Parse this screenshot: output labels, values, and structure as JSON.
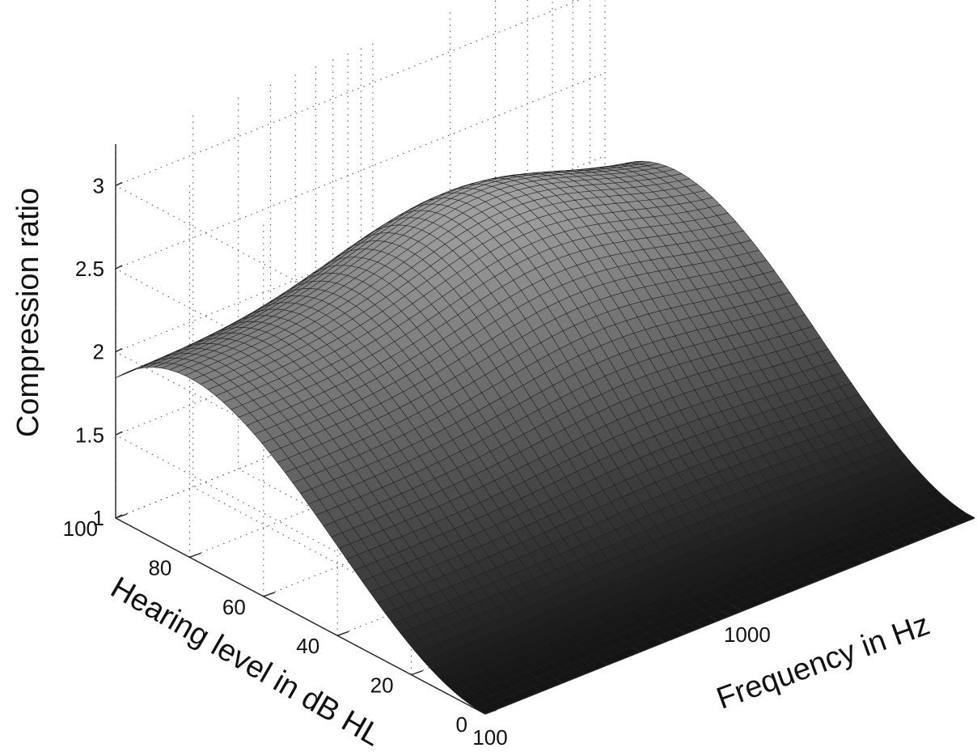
{
  "chart_data": {
    "type": "surface",
    "title": "",
    "xlabel": "Frequency in Hz",
    "ylabel": "Hearing level in dB HL",
    "zlabel": "Compression ratio",
    "x_scale": "log",
    "x_ticks": [
      100,
      1000
    ],
    "x_minor_ticks": [
      200,
      300,
      400,
      500,
      600,
      700,
      800,
      900,
      2000,
      3000,
      4000,
      5000,
      6000,
      7000,
      8000
    ],
    "xlim": [
      100,
      8000
    ],
    "y_ticks": [
      0,
      20,
      40,
      60,
      80,
      100
    ],
    "ylim": [
      0,
      100
    ],
    "z_ticks": [
      1,
      1.5,
      2,
      2.5,
      3
    ],
    "zlim": [
      1,
      3.25
    ],
    "grid": true,
    "colormap": "gray",
    "surface_model": "compression ratio as a function of hearing level (peaks near 60 dB HL) and frequency (peaks near 1.5-2 kHz)",
    "surface_samples": [
      {
        "frequency": 100,
        "hearing_level": 0,
        "ratio": 1.0
      },
      {
        "frequency": 100,
        "hearing_level": 100,
        "ratio": 1.7
      },
      {
        "frequency": 100,
        "hearing_level": 60,
        "ratio": 2.85
      },
      {
        "frequency": 8000,
        "hearing_level": 0,
        "ratio": 1.0
      },
      {
        "frequency": 8000,
        "hearing_level": 100,
        "ratio": 2.3
      },
      {
        "frequency": 1500,
        "hearing_level": 60,
        "ratio": 3.3
      }
    ]
  }
}
